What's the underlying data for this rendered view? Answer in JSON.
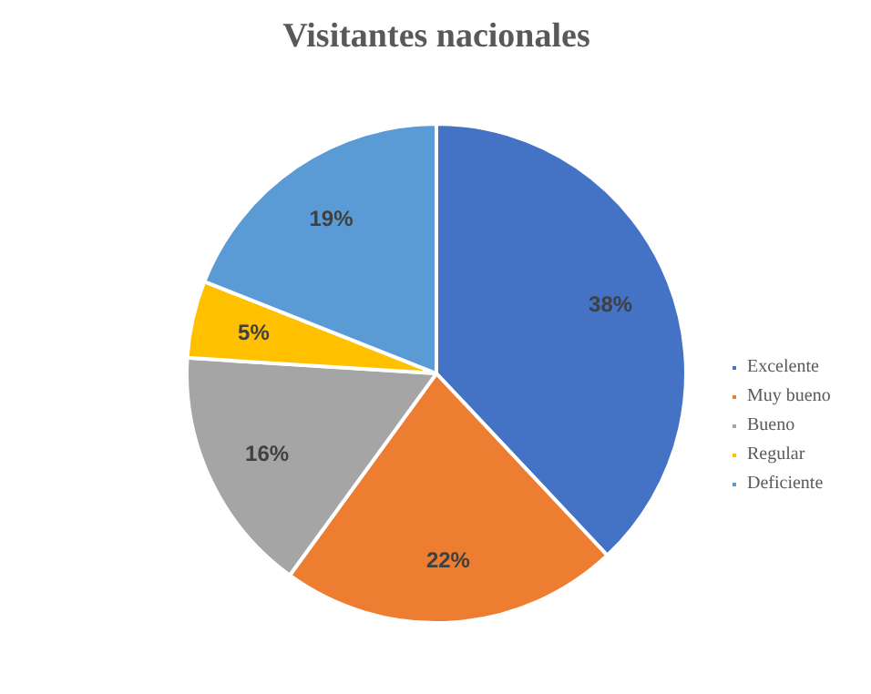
{
  "chart_data": {
    "type": "pie",
    "title": "Visitantes nacionales",
    "categories": [
      "Excelente",
      "Muy bueno",
      "Bueno",
      "Regular",
      "Deficiente"
    ],
    "values": [
      38,
      22,
      16,
      5,
      19
    ],
    "colors": [
      "#4472c4",
      "#ed7d31",
      "#a5a5a5",
      "#ffc000",
      "#5b9bd5"
    ],
    "value_labels": [
      "38%",
      "22%",
      "16%",
      "5%",
      "19%"
    ],
    "legend": "right"
  }
}
